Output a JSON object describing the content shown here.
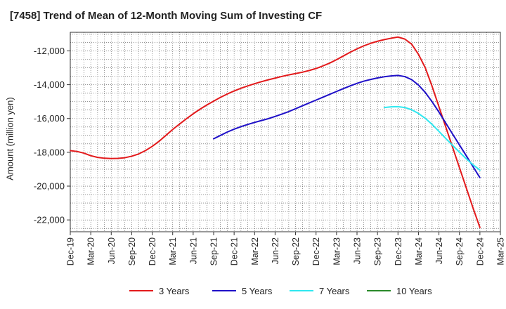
{
  "chart_data": {
    "type": "line",
    "title": "[7458]  Trend of Mean of 12-Month Moving Sum of Investing CF",
    "xlabel": "",
    "ylabel": "Amount (million yen)",
    "ylim": [
      -22700,
      -10900
    ],
    "y_ticks": [
      -12000,
      -14000,
      -16000,
      -18000,
      -20000,
      -22000
    ],
    "y_tick_labels": [
      "-12,000",
      "-14,000",
      "-16,000",
      "-18,000",
      "-20,000",
      "-22,000"
    ],
    "x_tick_labels": [
      "Dec-19",
      "Mar-20",
      "Jun-20",
      "Sep-20",
      "Dec-20",
      "Mar-21",
      "Jun-21",
      "Sep-21",
      "Dec-21",
      "Mar-22",
      "Jun-22",
      "Sep-22",
      "Dec-22",
      "Mar-23",
      "Jun-23",
      "Sep-23",
      "Dec-23",
      "Mar-24",
      "Jun-24",
      "Sep-24",
      "Dec-24",
      "Mar-25"
    ],
    "grid": true,
    "legend_position": "bottom",
    "series": [
      {
        "name": "3 Years",
        "color": "#e31a1c",
        "points": [
          [
            0,
            -17900
          ],
          [
            1,
            -17950
          ],
          [
            2,
            -18050
          ],
          [
            3,
            -18200
          ],
          [
            4,
            -18300
          ],
          [
            5,
            -18350
          ],
          [
            6,
            -18370
          ],
          [
            7,
            -18360
          ],
          [
            8,
            -18320
          ],
          [
            9,
            -18230
          ],
          [
            10,
            -18100
          ],
          [
            11,
            -17900
          ],
          [
            12,
            -17650
          ],
          [
            13,
            -17350
          ],
          [
            14,
            -17000
          ],
          [
            15,
            -16650
          ],
          [
            16,
            -16330
          ],
          [
            17,
            -16020
          ],
          [
            18,
            -15720
          ],
          [
            19,
            -15450
          ],
          [
            20,
            -15200
          ],
          [
            21,
            -14970
          ],
          [
            22,
            -14750
          ],
          [
            23,
            -14550
          ],
          [
            24,
            -14370
          ],
          [
            25,
            -14210
          ],
          [
            26,
            -14070
          ],
          [
            27,
            -13940
          ],
          [
            28,
            -13820
          ],
          [
            29,
            -13710
          ],
          [
            30,
            -13610
          ],
          [
            31,
            -13510
          ],
          [
            32,
            -13420
          ],
          [
            33,
            -13340
          ],
          [
            34,
            -13260
          ],
          [
            35,
            -13160
          ],
          [
            36,
            -13040
          ],
          [
            37,
            -12890
          ],
          [
            38,
            -12720
          ],
          [
            39,
            -12520
          ],
          [
            40,
            -12300
          ],
          [
            41,
            -12080
          ],
          [
            42,
            -11880
          ],
          [
            43,
            -11700
          ],
          [
            44,
            -11550
          ],
          [
            45,
            -11430
          ],
          [
            46,
            -11330
          ],
          [
            47,
            -11250
          ],
          [
            48,
            -11180
          ],
          [
            49,
            -11300
          ],
          [
            50,
            -11600
          ],
          [
            51,
            -12200
          ],
          [
            52,
            -13000
          ],
          [
            53,
            -14100
          ],
          [
            54,
            -15300
          ],
          [
            55,
            -16500
          ],
          [
            56,
            -17700
          ],
          [
            57,
            -18900
          ],
          [
            58,
            -20100
          ],
          [
            59,
            -21300
          ],
          [
            60,
            -22450
          ]
        ]
      },
      {
        "name": "5 Years",
        "color": "#1f10c8",
        "points": [
          [
            21,
            -17200
          ],
          [
            22,
            -17000
          ],
          [
            23,
            -16800
          ],
          [
            24,
            -16630
          ],
          [
            25,
            -16480
          ],
          [
            26,
            -16350
          ],
          [
            27,
            -16230
          ],
          [
            28,
            -16120
          ],
          [
            29,
            -16010
          ],
          [
            30,
            -15880
          ],
          [
            31,
            -15740
          ],
          [
            32,
            -15590
          ],
          [
            33,
            -15420
          ],
          [
            34,
            -15250
          ],
          [
            35,
            -15080
          ],
          [
            36,
            -14910
          ],
          [
            37,
            -14740
          ],
          [
            38,
            -14570
          ],
          [
            39,
            -14400
          ],
          [
            40,
            -14230
          ],
          [
            41,
            -14070
          ],
          [
            42,
            -13920
          ],
          [
            43,
            -13790
          ],
          [
            44,
            -13690
          ],
          [
            45,
            -13600
          ],
          [
            46,
            -13530
          ],
          [
            47,
            -13480
          ],
          [
            48,
            -13450
          ],
          [
            49,
            -13520
          ],
          [
            50,
            -13700
          ],
          [
            51,
            -14020
          ],
          [
            52,
            -14460
          ],
          [
            53,
            -15010
          ],
          [
            54,
            -15620
          ],
          [
            55,
            -16270
          ],
          [
            56,
            -16920
          ],
          [
            57,
            -17560
          ],
          [
            58,
            -18200
          ],
          [
            59,
            -18850
          ],
          [
            60,
            -19500
          ]
        ]
      },
      {
        "name": "7 Years",
        "color": "#2fe8f0",
        "points": [
          [
            46,
            -15350
          ],
          [
            47,
            -15310
          ],
          [
            48,
            -15300
          ],
          [
            49,
            -15350
          ],
          [
            50,
            -15480
          ],
          [
            51,
            -15700
          ],
          [
            52,
            -15990
          ],
          [
            53,
            -16350
          ],
          [
            54,
            -16760
          ],
          [
            55,
            -17180
          ],
          [
            56,
            -17590
          ],
          [
            57,
            -17990
          ],
          [
            58,
            -18380
          ],
          [
            59,
            -18740
          ],
          [
            60,
            -19050
          ]
        ]
      },
      {
        "name": "10 Years",
        "color": "#2a8a2a",
        "points": []
      }
    ]
  }
}
